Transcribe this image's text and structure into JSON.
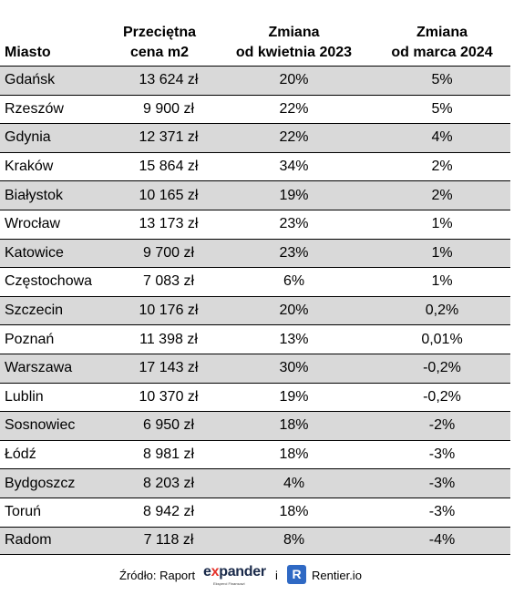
{
  "chart_data": {
    "type": "table",
    "columns": [
      "Miasto",
      "Przeciętna cena m2",
      "Zmiana od kwietnia 2023",
      "Zmiana od marca 2024"
    ],
    "header_lines": [
      [
        "Miasto"
      ],
      [
        "Przeciętna",
        "cena m2"
      ],
      [
        "Zmiana",
        "od kwietnia 2023"
      ],
      [
        "Zmiana",
        "od marca 2024"
      ]
    ],
    "rows": [
      [
        "Gdańsk",
        "13 624 zł",
        "20%",
        "5%"
      ],
      [
        "Rzeszów",
        "9 900 zł",
        "22%",
        "5%"
      ],
      [
        "Gdynia",
        "12 371 zł",
        "22%",
        "4%"
      ],
      [
        "Kraków",
        "15 864 zł",
        "34%",
        "2%"
      ],
      [
        "Białystok",
        "10 165 zł",
        "19%",
        "2%"
      ],
      [
        "Wrocław",
        "13 173 zł",
        "23%",
        "1%"
      ],
      [
        "Katowice",
        "9 700 zł",
        "23%",
        "1%"
      ],
      [
        "Częstochowa",
        "7 083 zł",
        "6%",
        "1%"
      ],
      [
        "Szczecin",
        "10 176 zł",
        "20%",
        "0,2%"
      ],
      [
        "Poznań",
        "11 398 zł",
        "13%",
        "0,01%"
      ],
      [
        "Warszawa",
        "17 143 zł",
        "30%",
        "-0,2%"
      ],
      [
        "Lublin",
        "10 370 zł",
        "19%",
        "-0,2%"
      ],
      [
        "Sosnowiec",
        "6 950 zł",
        "18%",
        "-2%"
      ],
      [
        "Łódź",
        "8 981 zł",
        "18%",
        "-3%"
      ],
      [
        "Bydgoszcz",
        "8 203 zł",
        "4%",
        "-3%"
      ],
      [
        "Toruń",
        "8 942 zł",
        "18%",
        "-3%"
      ],
      [
        "Radom",
        "7 118 zł",
        "8%",
        "-4%"
      ]
    ],
    "shaded_row_color": "#d9d9d9"
  },
  "footer": {
    "source_label": "Źródło: Raport",
    "expander_prefix": "e",
    "expander_x": "x",
    "expander_rest": "pander",
    "expander_tagline": "Eksperci Finansowi",
    "and": "i",
    "rentier_badge": "R",
    "rentier_name": "Rentier.io"
  },
  "colors": {
    "expander_red": "#e4332b",
    "expander_navy": "#1a2a4a",
    "rentier_blue": "#2f69c4"
  }
}
